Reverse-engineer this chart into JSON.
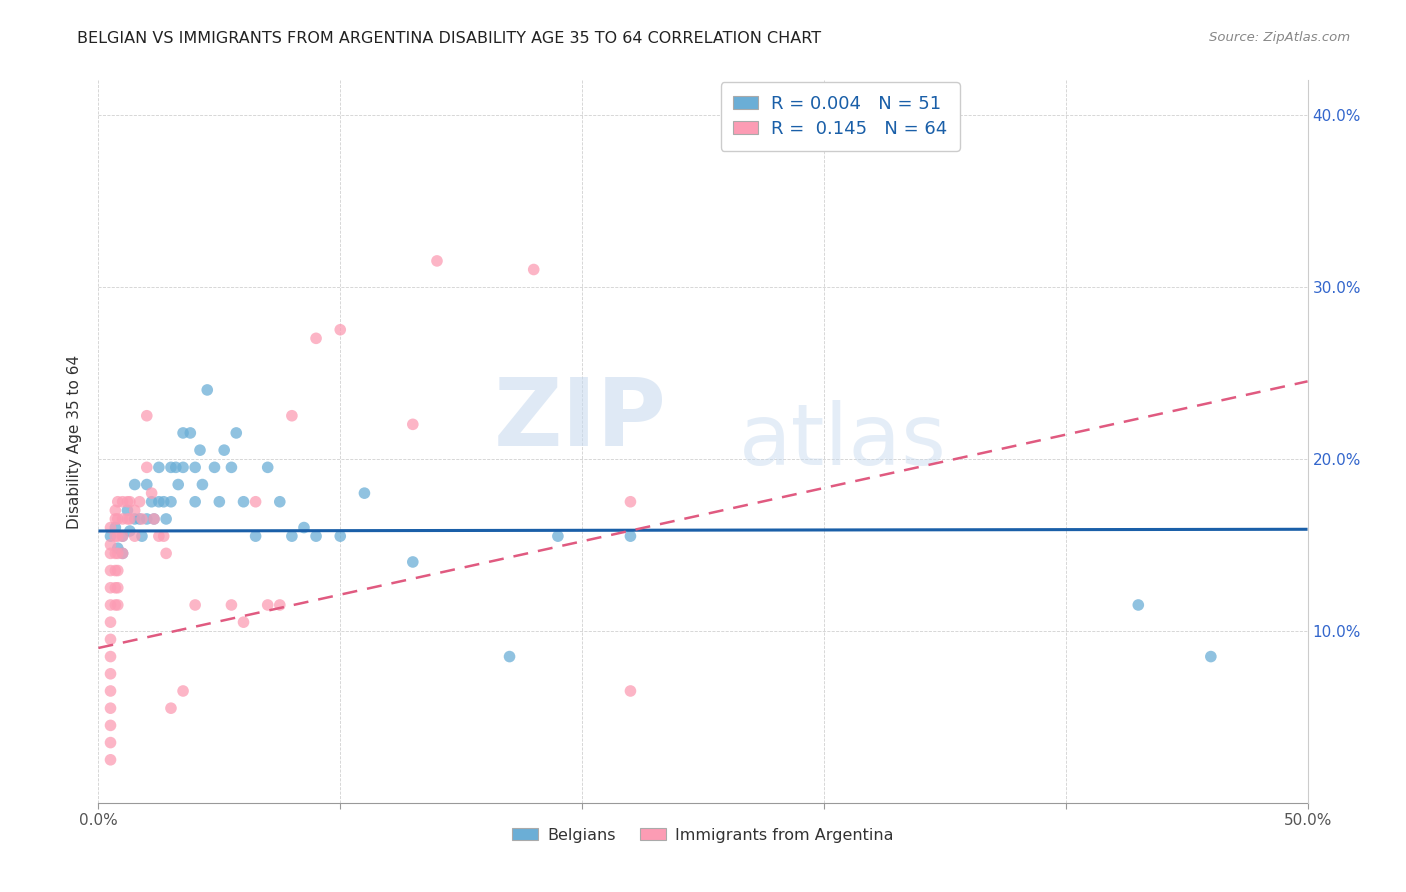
{
  "title": "BELGIAN VS IMMIGRANTS FROM ARGENTINA DISABILITY AGE 35 TO 64 CORRELATION CHART",
  "source": "Source: ZipAtlas.com",
  "ylabel": "Disability Age 35 to 64",
  "xlim": [
    0.0,
    0.5
  ],
  "ylim": [
    0.0,
    0.42
  ],
  "xticks": [
    0.0,
    0.1,
    0.2,
    0.3,
    0.4,
    0.5
  ],
  "yticks": [
    0.0,
    0.1,
    0.2,
    0.3,
    0.4
  ],
  "belgian_color": "#6baed6",
  "argentina_color": "#fc9cb4",
  "belgian_R": 0.004,
  "belgian_N": 51,
  "argentina_R": 0.145,
  "argentina_N": 64,
  "watermark_zip": "ZIP",
  "watermark_atlas": "atlas",
  "legend_labels": [
    "Belgians",
    "Immigrants from Argentina"
  ],
  "belgian_scatter_x": [
    0.005,
    0.007,
    0.008,
    0.01,
    0.01,
    0.012,
    0.013,
    0.015,
    0.015,
    0.017,
    0.018,
    0.02,
    0.02,
    0.022,
    0.023,
    0.025,
    0.025,
    0.027,
    0.028,
    0.03,
    0.03,
    0.032,
    0.033,
    0.035,
    0.035,
    0.038,
    0.04,
    0.04,
    0.042,
    0.043,
    0.045,
    0.048,
    0.05,
    0.052,
    0.055,
    0.057,
    0.06,
    0.065,
    0.07,
    0.075,
    0.08,
    0.085,
    0.09,
    0.1,
    0.11,
    0.13,
    0.17,
    0.19,
    0.22,
    0.43,
    0.46
  ],
  "belgian_scatter_y": [
    0.155,
    0.16,
    0.148,
    0.155,
    0.145,
    0.17,
    0.158,
    0.185,
    0.165,
    0.165,
    0.155,
    0.185,
    0.165,
    0.175,
    0.165,
    0.195,
    0.175,
    0.175,
    0.165,
    0.195,
    0.175,
    0.195,
    0.185,
    0.215,
    0.195,
    0.215,
    0.195,
    0.175,
    0.205,
    0.185,
    0.24,
    0.195,
    0.175,
    0.205,
    0.195,
    0.215,
    0.175,
    0.155,
    0.195,
    0.175,
    0.155,
    0.16,
    0.155,
    0.155,
    0.18,
    0.14,
    0.085,
    0.155,
    0.155,
    0.115,
    0.085
  ],
  "argentina_scatter_x": [
    0.005,
    0.005,
    0.005,
    0.005,
    0.005,
    0.005,
    0.005,
    0.005,
    0.005,
    0.005,
    0.005,
    0.005,
    0.005,
    0.005,
    0.005,
    0.007,
    0.007,
    0.007,
    0.007,
    0.007,
    0.007,
    0.007,
    0.008,
    0.008,
    0.008,
    0.008,
    0.008,
    0.008,
    0.008,
    0.01,
    0.01,
    0.01,
    0.01,
    0.012,
    0.012,
    0.013,
    0.013,
    0.015,
    0.015,
    0.017,
    0.018,
    0.02,
    0.02,
    0.022,
    0.023,
    0.025,
    0.027,
    0.028,
    0.03,
    0.035,
    0.04,
    0.055,
    0.06,
    0.065,
    0.07,
    0.075,
    0.08,
    0.09,
    0.1,
    0.13,
    0.14,
    0.18,
    0.22,
    0.22
  ],
  "argentina_scatter_y": [
    0.16,
    0.15,
    0.145,
    0.135,
    0.125,
    0.115,
    0.105,
    0.095,
    0.085,
    0.075,
    0.065,
    0.055,
    0.045,
    0.035,
    0.025,
    0.17,
    0.165,
    0.155,
    0.145,
    0.135,
    0.125,
    0.115,
    0.175,
    0.165,
    0.155,
    0.145,
    0.135,
    0.125,
    0.115,
    0.175,
    0.165,
    0.155,
    0.145,
    0.175,
    0.165,
    0.175,
    0.165,
    0.17,
    0.155,
    0.175,
    0.165,
    0.225,
    0.195,
    0.18,
    0.165,
    0.155,
    0.155,
    0.145,
    0.055,
    0.065,
    0.115,
    0.115,
    0.105,
    0.175,
    0.115,
    0.115,
    0.225,
    0.27,
    0.275,
    0.22,
    0.315,
    0.31,
    0.175,
    0.065
  ],
  "belgian_trend_x": [
    0.0,
    0.5
  ],
  "belgian_trend_y": [
    0.158,
    0.159
  ],
  "argentina_trend_x": [
    0.0,
    0.5
  ],
  "argentina_trend_y": [
    0.09,
    0.245
  ]
}
